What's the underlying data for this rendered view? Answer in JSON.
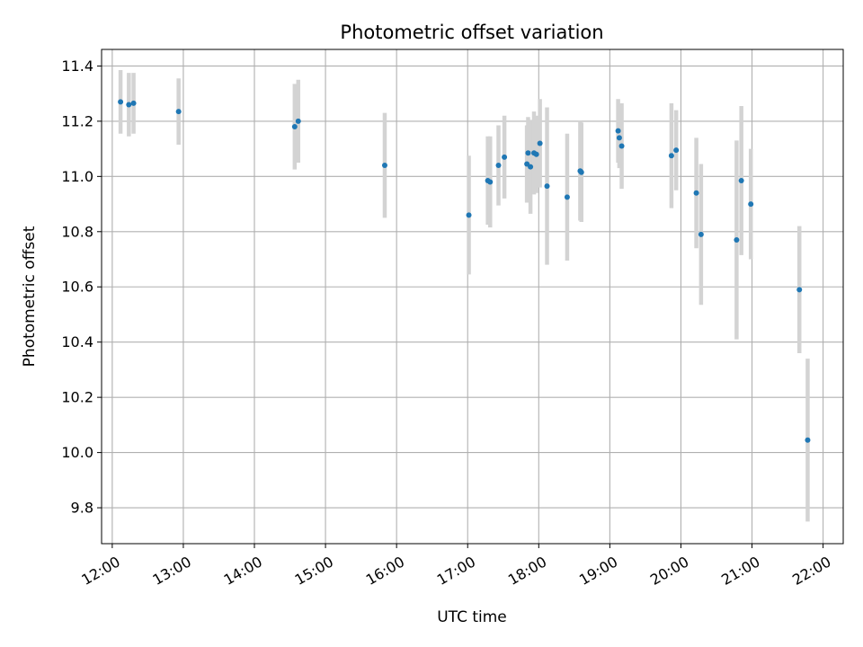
{
  "chart_data": {
    "type": "scatter",
    "title": "Photometric offset variation",
    "xlabel": "UTC time",
    "ylabel": "Photometric offset",
    "xlim": [
      "11:51",
      "22:17"
    ],
    "ylim": [
      9.67,
      11.46
    ],
    "x_ticks": [
      "12:00",
      "13:00",
      "14:00",
      "15:00",
      "16:00",
      "17:00",
      "18:00",
      "19:00",
      "20:00",
      "21:00",
      "22:00"
    ],
    "y_ticks": [
      9.8,
      10.0,
      10.2,
      10.4,
      10.6,
      10.8,
      11.0,
      11.2,
      11.4
    ],
    "y_tick_labels": [
      "9.8",
      "10.0",
      "10.2",
      "10.4",
      "10.6",
      "10.8",
      "11.0",
      "11.2",
      "11.4"
    ],
    "grid": true,
    "marker_color": "#1f77b4",
    "errorbar_color": "#d3d3d3",
    "points": [
      {
        "x": "12:07",
        "y": 11.27,
        "err": 0.115
      },
      {
        "x": "12:14",
        "y": 11.26,
        "err": 0.115
      },
      {
        "x": "12:18",
        "y": 11.265,
        "err": 0.11
      },
      {
        "x": "12:56",
        "y": 11.235,
        "err": 0.12
      },
      {
        "x": "14:34",
        "y": 11.18,
        "err": 0.155
      },
      {
        "x": "14:37",
        "y": 11.2,
        "err": 0.15
      },
      {
        "x": "15:50",
        "y": 11.04,
        "err": 0.19
      },
      {
        "x": "17:01",
        "y": 10.86,
        "err": 0.215
      },
      {
        "x": "17:17",
        "y": 10.985,
        "err": 0.16
      },
      {
        "x": "17:19",
        "y": 10.98,
        "err": 0.165
      },
      {
        "x": "17:26",
        "y": 11.04,
        "err": 0.145
      },
      {
        "x": "17:31",
        "y": 11.07,
        "err": 0.15
      },
      {
        "x": "17:50",
        "y": 11.045,
        "err": 0.14
      },
      {
        "x": "17:51",
        "y": 11.085,
        "err": 0.13
      },
      {
        "x": "17:53",
        "y": 11.035,
        "err": 0.17
      },
      {
        "x": "17:56",
        "y": 11.085,
        "err": 0.15
      },
      {
        "x": "17:58",
        "y": 11.08,
        "err": 0.14
      },
      {
        "x": "18:01",
        "y": 11.12,
        "err": 0.16
      },
      {
        "x": "18:07",
        "y": 10.965,
        "err": 0.285
      },
      {
        "x": "18:24",
        "y": 10.925,
        "err": 0.23
      },
      {
        "x": "18:35",
        "y": 11.02,
        "err": 0.18
      },
      {
        "x": "18:36",
        "y": 11.015,
        "err": 0.18
      },
      {
        "x": "19:07",
        "y": 11.165,
        "err": 0.115
      },
      {
        "x": "19:08",
        "y": 11.14,
        "err": 0.11
      },
      {
        "x": "19:10",
        "y": 11.11,
        "err": 0.155
      },
      {
        "x": "19:52",
        "y": 11.075,
        "err": 0.19
      },
      {
        "x": "19:56",
        "y": 11.095,
        "err": 0.145
      },
      {
        "x": "20:13",
        "y": 10.94,
        "err": 0.2
      },
      {
        "x": "20:17",
        "y": 10.79,
        "err": 0.255
      },
      {
        "x": "20:47",
        "y": 10.77,
        "err": 0.36
      },
      {
        "x": "20:51",
        "y": 10.985,
        "err": 0.27
      },
      {
        "x": "20:59",
        "y": 10.9,
        "err": 0.2
      },
      {
        "x": "21:40",
        "y": 10.59,
        "err": 0.23
      },
      {
        "x": "21:47",
        "y": 10.045,
        "err": 0.295
      }
    ]
  }
}
